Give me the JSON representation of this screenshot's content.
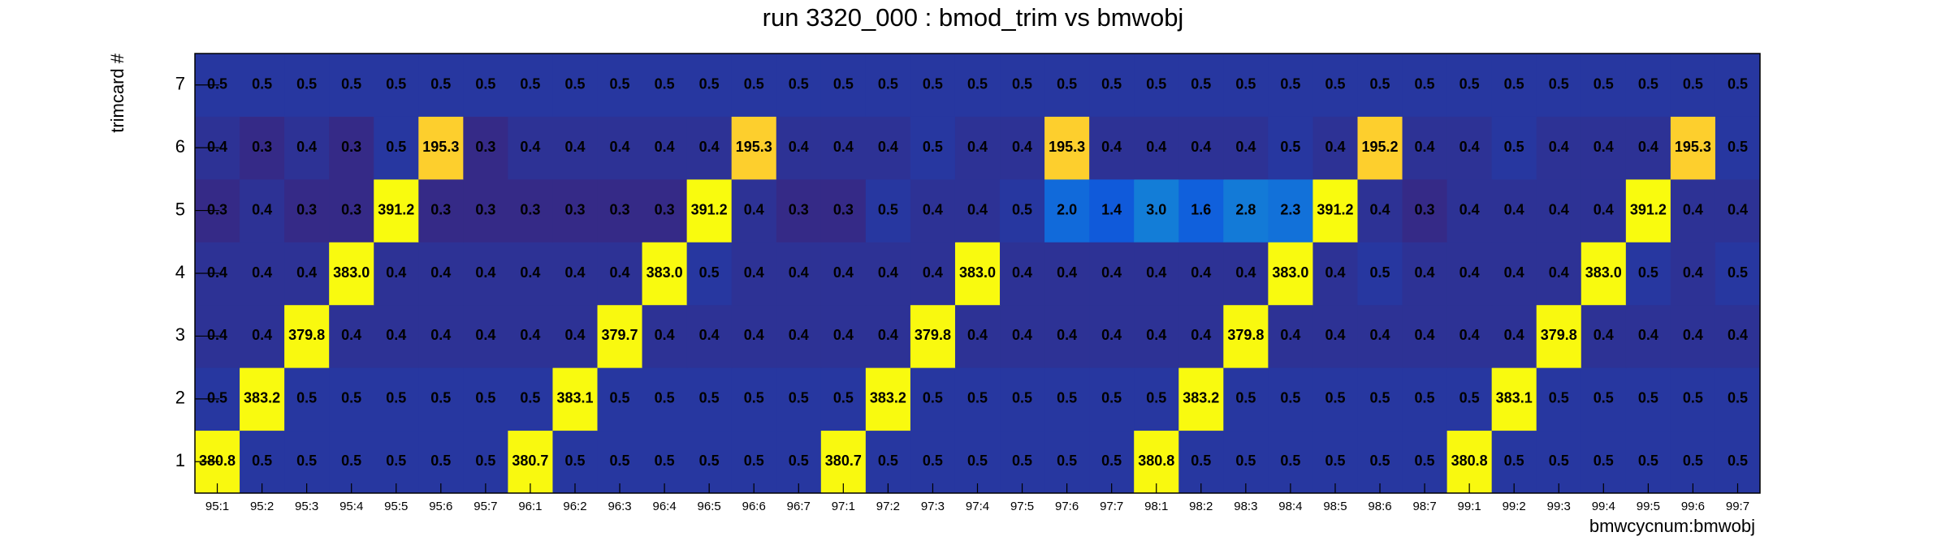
{
  "chart_data": {
    "type": "heatmap",
    "title": "run 3320_000 : bmod_trim vs bmwobj",
    "x_label": "bmwcycnum:bmwobj",
    "y_label": "trimcard #",
    "x_categories": [
      "95:1",
      "95:2",
      "95:3",
      "95:4",
      "95:5",
      "95:6",
      "95:7",
      "96:1",
      "96:2",
      "96:3",
      "96:4",
      "96:5",
      "96:6",
      "96:7",
      "97:1",
      "97:2",
      "97:3",
      "97:4",
      "97:5",
      "97:6",
      "97:7",
      "98:1",
      "98:2",
      "98:3",
      "98:4",
      "98:5",
      "98:6",
      "98:7",
      "99:1",
      "99:2",
      "99:3",
      "99:4",
      "99:5",
      "99:6",
      "99:7"
    ],
    "y_categories": [
      1,
      2,
      3,
      4,
      5,
      6,
      7
    ],
    "values": [
      [
        380.8,
        0.5,
        0.5,
        0.5,
        0.5,
        0.5,
        0.5,
        380.7,
        0.5,
        0.5,
        0.5,
        0.5,
        0.5,
        0.5,
        380.7,
        0.5,
        0.5,
        0.5,
        0.5,
        0.5,
        0.5,
        380.8,
        0.5,
        0.5,
        0.5,
        0.5,
        0.5,
        0.5,
        380.8,
        0.5,
        0.5,
        0.5,
        0.5,
        0.5,
        0.5
      ],
      [
        0.5,
        383.2,
        0.5,
        0.5,
        0.5,
        0.5,
        0.5,
        0.5,
        383.1,
        0.5,
        0.5,
        0.5,
        0.5,
        0.5,
        0.5,
        383.2,
        0.5,
        0.5,
        0.5,
        0.5,
        0.5,
        0.5,
        383.2,
        0.5,
        0.5,
        0.5,
        0.5,
        0.5,
        0.5,
        383.1,
        0.5,
        0.5,
        0.5,
        0.5,
        0.5
      ],
      [
        0.4,
        0.4,
        379.8,
        0.4,
        0.4,
        0.4,
        0.4,
        0.4,
        0.4,
        379.7,
        0.4,
        0.4,
        0.4,
        0.4,
        0.4,
        0.4,
        379.8,
        0.4,
        0.4,
        0.4,
        0.4,
        0.4,
        0.4,
        379.8,
        0.4,
        0.4,
        0.4,
        0.4,
        0.4,
        0.4,
        379.8,
        0.4,
        0.4,
        0.4,
        0.4
      ],
      [
        0.4,
        0.4,
        0.4,
        383.0,
        0.4,
        0.4,
        0.4,
        0.4,
        0.4,
        0.4,
        383.0,
        0.5,
        0.4,
        0.4,
        0.4,
        0.4,
        0.4,
        383.0,
        0.4,
        0.4,
        0.4,
        0.4,
        0.4,
        0.4,
        383.0,
        0.4,
        0.5,
        0.4,
        0.4,
        0.4,
        0.4,
        383.0,
        0.5,
        0.4,
        0.5
      ],
      [
        0.3,
        0.4,
        0.3,
        0.3,
        391.2,
        0.3,
        0.3,
        0.3,
        0.3,
        0.3,
        0.3,
        391.2,
        0.4,
        0.3,
        0.3,
        0.5,
        0.4,
        0.4,
        0.5,
        2.0,
        1.4,
        3.0,
        1.6,
        2.8,
        2.3,
        391.2,
        0.4,
        0.3,
        0.4,
        0.4,
        0.4,
        0.4,
        391.2,
        0.4,
        0.4
      ],
      [
        0.4,
        0.3,
        0.4,
        0.3,
        0.5,
        195.3,
        0.3,
        0.4,
        0.4,
        0.4,
        0.4,
        0.4,
        195.3,
        0.4,
        0.4,
        0.4,
        0.5,
        0.4,
        0.4,
        195.3,
        0.4,
        0.4,
        0.4,
        0.4,
        0.5,
        0.4,
        195.2,
        0.4,
        0.4,
        0.5,
        0.4,
        0.4,
        0.4,
        195.3,
        0.5
      ],
      [
        0.5,
        0.5,
        0.5,
        0.5,
        0.5,
        0.5,
        0.5,
        0.5,
        0.5,
        0.5,
        0.5,
        0.5,
        0.5,
        0.5,
        0.5,
        0.5,
        0.5,
        0.5,
        0.5,
        0.5,
        0.5,
        0.5,
        0.5,
        0.5,
        0.5,
        0.5,
        0.5,
        0.5,
        0.5,
        0.5,
        0.5,
        0.5,
        0.5,
        0.5,
        0.5
      ]
    ],
    "value_labels": [
      [
        "380.8",
        "0.5",
        "0.5",
        "0.5",
        "0.5",
        "0.5",
        "0.5",
        "380.7",
        "0.5",
        "0.5",
        "0.5",
        "0.5",
        "0.5",
        "0.5",
        "380.7",
        "0.5",
        "0.5",
        "0.5",
        "0.5",
        "0.5",
        "0.5",
        "380.8",
        "0.5",
        "0.5",
        "0.5",
        "0.5",
        "0.5",
        "0.5",
        "380.8",
        "0.5",
        "0.5",
        "0.5",
        "0.5",
        "0.5",
        "0.5"
      ],
      [
        "0.5",
        "383.2",
        "0.5",
        "0.5",
        "0.5",
        "0.5",
        "0.5",
        "0.5",
        "383.1",
        "0.5",
        "0.5",
        "0.5",
        "0.5",
        "0.5",
        "0.5",
        "383.2",
        "0.5",
        "0.5",
        "0.5",
        "0.5",
        "0.5",
        "0.5",
        "383.2",
        "0.5",
        "0.5",
        "0.5",
        "0.5",
        "0.5",
        "0.5",
        "383.1",
        "0.5",
        "0.5",
        "0.5",
        "0.5",
        "0.5"
      ],
      [
        "0.4",
        "0.4",
        "379.8",
        "0.4",
        "0.4",
        "0.4",
        "0.4",
        "0.4",
        "0.4",
        "379.7",
        "0.4",
        "0.4",
        "0.4",
        "0.4",
        "0.4",
        "0.4",
        "379.8",
        "0.4",
        "0.4",
        "0.4",
        "0.4",
        "0.4",
        "0.4",
        "379.8",
        "0.4",
        "0.4",
        "0.4",
        "0.4",
        "0.4",
        "0.4",
        "379.8",
        "0.4",
        "0.4",
        "0.4",
        "0.4"
      ],
      [
        "0.4",
        "0.4",
        "0.4",
        "383.0",
        "0.4",
        "0.4",
        "0.4",
        "0.4",
        "0.4",
        "0.4",
        "383.0",
        "0.5",
        "0.4",
        "0.4",
        "0.4",
        "0.4",
        "0.4",
        "383.0",
        "0.4",
        "0.4",
        "0.4",
        "0.4",
        "0.4",
        "0.4",
        "383.0",
        "0.4",
        "0.5",
        "0.4",
        "0.4",
        "0.4",
        "0.4",
        "383.0",
        "0.5",
        "0.4",
        "0.5"
      ],
      [
        "0.3",
        "0.4",
        "0.3",
        "0.3",
        "391.2",
        "0.3",
        "0.3",
        "0.3",
        "0.3",
        "0.3",
        "0.3",
        "391.2",
        "0.4",
        "0.3",
        "0.3",
        "0.5",
        "0.4",
        "0.4",
        "0.5",
        "2.0",
        "1.4",
        "3.0",
        "1.6",
        "2.8",
        "2.3",
        "391.2",
        "0.4",
        "0.3",
        "0.4",
        "0.4",
        "0.4",
        "0.4",
        "391.2",
        "0.4",
        "0.4"
      ],
      [
        "0.4",
        "0.3",
        "0.4",
        "0.3",
        "0.5",
        "195.3",
        "0.3",
        "0.4",
        "0.4",
        "0.4",
        "0.4",
        "0.4",
        "195.3",
        "0.4",
        "0.4",
        "0.4",
        "0.5",
        "0.4",
        "0.4",
        "195.3",
        "0.4",
        "0.4",
        "0.4",
        "0.4",
        "0.5",
        "0.4",
        "195.2",
        "0.4",
        "0.4",
        "0.5",
        "0.4",
        "0.4",
        "0.4",
        "195.3",
        "0.5"
      ],
      [
        "0.5",
        "0.5",
        "0.5",
        "0.5",
        "0.5",
        "0.5",
        "0.5",
        "0.5",
        "0.5",
        "0.5",
        "0.5",
        "0.5",
        "0.5",
        "0.5",
        "0.5",
        "0.5",
        "0.5",
        "0.5",
        "0.5",
        "0.5",
        "0.5",
        "0.5",
        "0.5",
        "0.5",
        "0.5",
        "0.5",
        "0.5",
        "0.5",
        "0.5",
        "0.5",
        "0.5",
        "0.5",
        "0.5",
        "0.5",
        "0.5"
      ]
    ],
    "zscale": "log",
    "colorscale": [
      "#352a87",
      "#1f3fae",
      "#0f5cdd",
      "#1481d6",
      "#06a4ca",
      "#2eb7a4",
      "#87bf77",
      "#d1bb59",
      "#fec832",
      "#f9fb0e"
    ]
  }
}
